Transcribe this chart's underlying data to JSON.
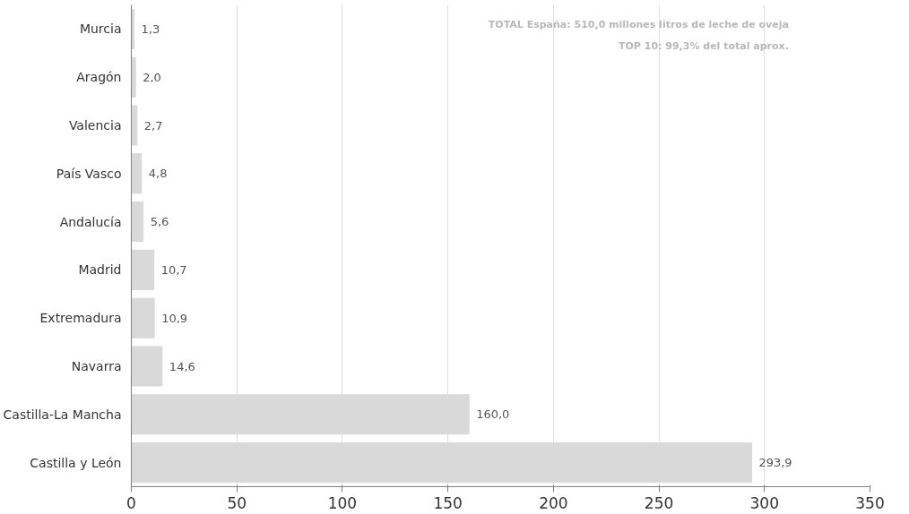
{
  "chart_data": {
    "type": "bar",
    "orientation": "horizontal",
    "categories": [
      "Murcia",
      "Aragón",
      "Valencia",
      "País Vasco",
      "Andalucía",
      "Madrid",
      "Extremadura",
      "Navarra",
      "Castilla-La Mancha",
      "Castilla y León"
    ],
    "values": [
      1.3,
      2.0,
      2.7,
      4.8,
      5.6,
      10.7,
      10.9,
      14.6,
      160.0,
      293.9
    ],
    "value_labels": [
      "1,3",
      "2,0",
      "2,7",
      "4,8",
      "5,6",
      "10,7",
      "10,9",
      "14,6",
      "160,0",
      "293,9"
    ],
    "color": "#d9d9d9",
    "xlim": [
      0,
      350
    ],
    "xticks": [
      0,
      50,
      100,
      150,
      200,
      250,
      300,
      350
    ],
    "grid": "x",
    "annotations": [
      "TOTAL España: 510,0 millones litros de leche de oveja",
      "TOP 10: 99,3% del total aprox."
    ]
  }
}
